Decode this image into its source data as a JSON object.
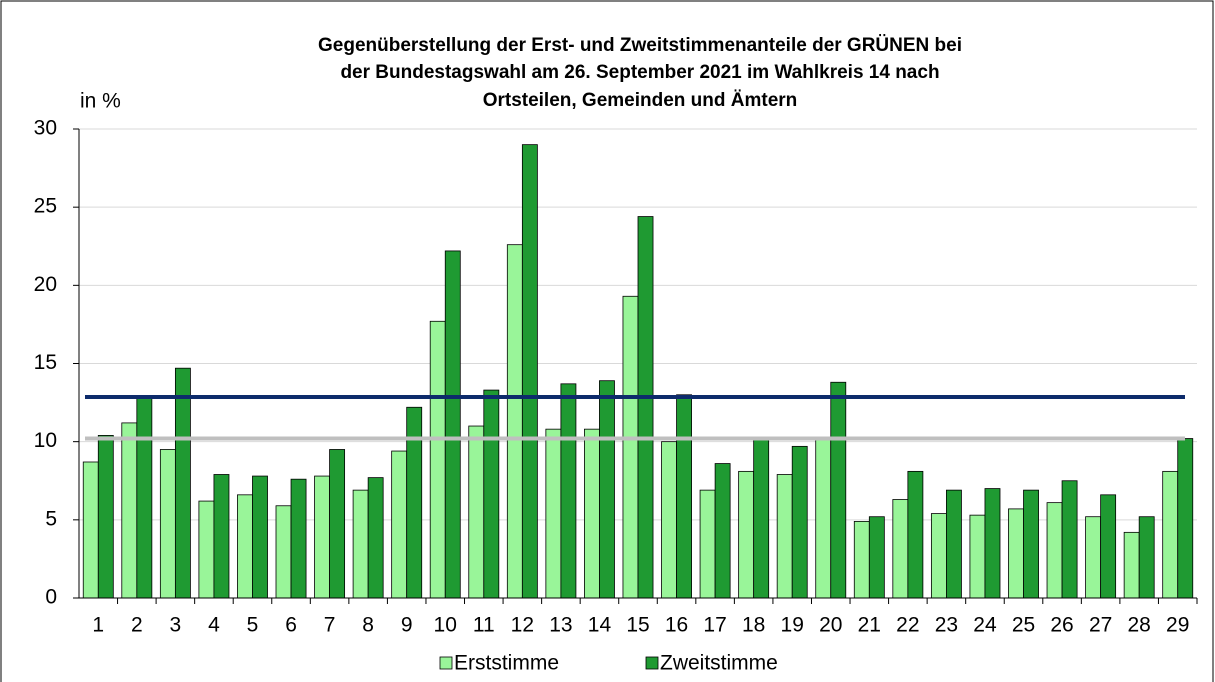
{
  "chart_data": {
    "type": "bar",
    "title": [
      "Gegenüberstellung der Erst- und Zweitstimmenanteile der GRÜNEN bei",
      "der Bundestagswahl am 26. September 2021 im Wahlkreis 14 nach",
      "Ortsteilen, Gemeinden und Ämtern"
    ],
    "y_label": "in %",
    "categories": [
      "1",
      "2",
      "3",
      "4",
      "5",
      "6",
      "7",
      "8",
      "9",
      "10",
      "11",
      "12",
      "13",
      "14",
      "15",
      "16",
      "17",
      "18",
      "19",
      "20",
      "21",
      "22",
      "23",
      "24",
      "25",
      "26",
      "27",
      "28",
      "29"
    ],
    "series": [
      {
        "name": "Erststimme",
        "color": "#99f599",
        "values": [
          8.7,
          11.2,
          9.5,
          6.2,
          6.6,
          5.9,
          7.8,
          6.9,
          9.4,
          17.7,
          11.0,
          22.6,
          10.8,
          10.8,
          19.3,
          10.0,
          6.9,
          8.1,
          7.9,
          10.1,
          4.9,
          6.3,
          5.4,
          5.3,
          5.7,
          6.1,
          5.2,
          4.2,
          8.1
        ]
      },
      {
        "name": "Zweitstimme",
        "color": "#1f9a32",
        "values": [
          10.4,
          12.9,
          14.7,
          7.9,
          7.8,
          7.6,
          9.5,
          7.7,
          12.2,
          22.2,
          13.3,
          29.0,
          13.7,
          13.9,
          24.4,
          13.0,
          8.6,
          10.2,
          9.7,
          13.8,
          5.2,
          8.1,
          6.9,
          7.0,
          6.9,
          7.5,
          6.6,
          5.2,
          10.2
        ]
      }
    ],
    "reference_lines": [
      {
        "value": 12.86,
        "color": "#0d2b6b"
      },
      {
        "value": 10.2,
        "color": "#bfbfbf"
      }
    ],
    "ylim": [
      0,
      30
    ],
    "yticks": [
      0,
      5,
      10,
      15,
      20,
      25,
      30
    ],
    "grid": true
  }
}
